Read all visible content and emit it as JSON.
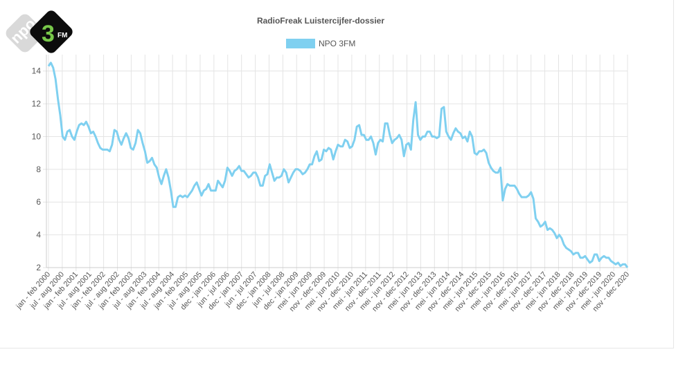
{
  "chart_data": {
    "type": "line",
    "title": "RadioFreak Luistercijfer-dossier",
    "xlabel": "",
    "ylabel": "",
    "ylim": [
      2,
      15
    ],
    "yticks": [
      2,
      4,
      6,
      8,
      10,
      12,
      14
    ],
    "grid": true,
    "legend_position": "top-center",
    "x_tick_labels": [
      "jan - feb 2000",
      "jul - aug 2000",
      "jan - feb 2001",
      "jul - aug 2001",
      "jan - feb 2002",
      "jul - aug 2002",
      "jan - feb 2003",
      "jul - aug 2003",
      "jan - feb 2004",
      "jul - aug 2004",
      "jan - feb 2005",
      "jul - aug 2005",
      "dec - jan 2006",
      "jun - jul 2006",
      "dec - jan 2007",
      "jun - jul 2007",
      "dec - jan 2008",
      "jun - jul 2008",
      "dec - jan 2009",
      "mei - jun 2009",
      "nov - dec 2009",
      "mei - jun 2010",
      "nov - dec 2010",
      "mei - jun 2011",
      "nov - dec 2011",
      "mei - jun 2012",
      "nov - dec 2012",
      "mei - jun 2013",
      "nov - dec 2013",
      "mei - jun 2014",
      "nov - dec 2014",
      "mei - jun 2015",
      "nov - dec 2015",
      "mei - jun 2016",
      "nov - dec 2016",
      "mei - jun 2017",
      "nov - dec 2017",
      "mei - jun 2018",
      "nov - dec 2018",
      "mei - jun 2019",
      "nov - dec 2019",
      "mei - jun 2020",
      "nov - dec 2020"
    ],
    "series": [
      {
        "name": "NPO 3FM",
        "color": "#7fd0f0",
        "values": [
          14.3,
          14.5,
          14.2,
          13.5,
          12.3,
          11.3,
          10.0,
          9.8,
          10.3,
          10.4,
          10.0,
          9.8,
          10.3,
          10.7,
          10.8,
          10.7,
          10.9,
          10.6,
          10.2,
          10.3,
          10.0,
          9.6,
          9.3,
          9.2,
          9.2,
          9.2,
          9.1,
          9.5,
          10.4,
          10.3,
          9.8,
          9.5,
          9.9,
          10.2,
          9.9,
          9.3,
          9.2,
          9.6,
          10.4,
          10.2,
          9.6,
          9.1,
          8.4,
          8.5,
          8.7,
          8.3,
          8.1,
          7.5,
          7.1,
          7.6,
          8.0,
          7.5,
          6.7,
          5.7,
          5.7,
          6.3,
          6.4,
          6.3,
          6.4,
          6.3,
          6.5,
          6.7,
          7.0,
          7.2,
          6.8,
          6.4,
          6.7,
          6.8,
          7.1,
          6.7,
          6.7,
          6.7,
          7.3,
          7.1,
          6.9,
          7.3,
          8.1,
          7.9,
          7.6,
          7.9,
          8.0,
          8.2,
          7.9,
          7.9,
          7.7,
          7.5,
          7.6,
          7.8,
          7.8,
          7.5,
          7.0,
          7.0,
          7.6,
          7.7,
          8.3,
          7.8,
          7.3,
          7.5,
          7.5,
          7.6,
          8.0,
          7.8,
          7.2,
          7.5,
          7.8,
          8.0,
          8.0,
          7.9,
          7.7,
          7.8,
          8.0,
          8.3,
          8.3,
          8.8,
          9.1,
          8.5,
          8.6,
          9.2,
          9.1,
          9.3,
          9.2,
          8.6,
          9.1,
          9.5,
          9.4,
          9.4,
          9.8,
          9.7,
          9.3,
          9.4,
          9.8,
          10.6,
          10.7,
          10.1,
          10.1,
          9.8,
          9.8,
          10.0,
          9.6,
          8.9,
          9.6,
          9.8,
          9.7,
          10.8,
          10.8,
          10.1,
          9.6,
          9.8,
          9.9,
          10.1,
          9.8,
          8.8,
          9.5,
          9.6,
          9.2,
          11.0,
          12.1,
          10.1,
          9.8,
          10.0,
          10.0,
          10.3,
          10.3,
          10.0,
          10.0,
          9.9,
          10.0,
          11.7,
          11.8,
          10.3,
          10.0,
          9.8,
          10.2,
          10.5,
          10.3,
          10.2,
          9.9,
          10.0,
          9.7,
          10.3,
          10.0,
          9.0,
          8.9,
          9.1,
          9.1,
          9.2,
          9.0,
          8.4,
          8.1,
          7.9,
          7.8,
          7.8,
          8.1,
          6.1,
          6.8,
          7.1,
          7.0,
          7.0,
          7.0,
          6.8,
          6.5,
          6.3,
          6.3,
          6.3,
          6.4,
          6.6,
          6.2,
          5.0,
          4.8,
          4.5,
          4.6,
          4.8,
          4.3,
          4.4,
          4.3,
          4.1,
          3.8,
          4.0,
          3.8,
          3.4,
          3.2,
          3.1,
          3.0,
          2.8,
          2.9,
          2.9,
          2.6,
          2.6,
          2.7,
          2.5,
          2.3,
          2.4,
          2.8,
          2.8,
          2.4,
          2.6,
          2.7,
          2.6,
          2.6,
          2.4,
          2.3,
          2.2,
          2.3,
          2.1,
          2.2,
          2.2,
          2.0
        ]
      }
    ]
  },
  "legend": {
    "label": "NPO 3FM",
    "color": "#7fd0f0"
  },
  "logo": {
    "text_left": "npo",
    "text_right": "3FM",
    "alt": "npo-3fm-logo"
  }
}
